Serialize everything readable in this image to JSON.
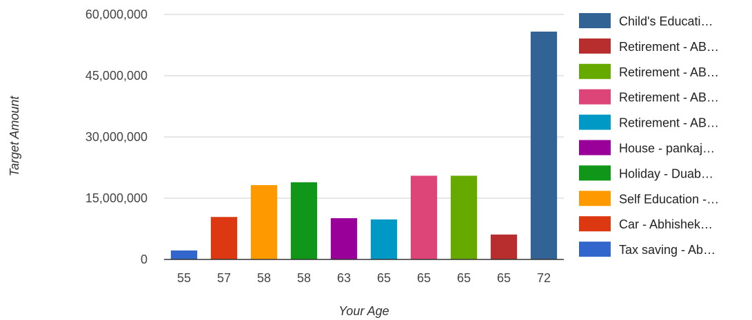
{
  "chart_data": {
    "type": "bar",
    "categories": [
      "55",
      "57",
      "58",
      "58",
      "63",
      "65",
      "65",
      "65",
      "65",
      "72"
    ],
    "values": [
      2200000,
      10400000,
      18200000,
      18900000,
      10100000,
      9800000,
      20500000,
      20500000,
      6100000,
      55800000
    ],
    "colors": [
      "#3366cc",
      "#dc3912",
      "#ff9900",
      "#109618",
      "#990099",
      "#0099c6",
      "#dd4477",
      "#66aa00",
      "#b82e2e",
      "#316395"
    ],
    "xlabel": "Your Age",
    "ylabel": "Target Amount",
    "ylim": [
      0,
      60000000
    ],
    "yticks": [
      0,
      15000000,
      30000000,
      45000000,
      60000000
    ],
    "ytick_labels": [
      "0",
      "15,000,000",
      "30,000,000",
      "45,000,000",
      "60,000,000"
    ],
    "grid": true,
    "legend_position": "right",
    "legend": [
      {
        "label": "Child's Educati…",
        "color": "#316395"
      },
      {
        "label": "Retirement - AB…",
        "color": "#b82e2e"
      },
      {
        "label": "Retirement - AB…",
        "color": "#66aa00"
      },
      {
        "label": "Retirement - AB…",
        "color": "#dd4477"
      },
      {
        "label": "Retirement - AB…",
        "color": "#0099c6"
      },
      {
        "label": "House - pankaj…",
        "color": "#990099"
      },
      {
        "label": "Holiday - Duab…",
        "color": "#109618"
      },
      {
        "label": "Self Education -…",
        "color": "#ff9900"
      },
      {
        "label": "Car - Abhishek…",
        "color": "#dc3912"
      },
      {
        "label": "Tax  saving - Ab…",
        "color": "#3366cc"
      }
    ]
  }
}
